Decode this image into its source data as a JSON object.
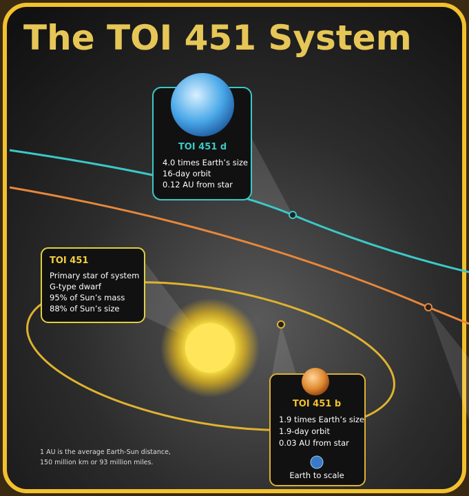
{
  "title": "The TOI 451 System",
  "planet_d": {
    "name": "TOI 451 d",
    "lines": [
      "4.0 times Earth’s size",
      "16-day orbit",
      "0.12 AU from star"
    ]
  },
  "star": {
    "name": "TOI 451",
    "lines": [
      "Primary star of system",
      "G-type dwarf",
      "95% of Sun’s mass",
      "88% of Sun’s size"
    ]
  },
  "planet_b": {
    "name": "TOI 451 b",
    "lines": [
      "1.9 times Earth’s size",
      "1.9-day orbit",
      "0.03 AU from star"
    ],
    "earth_note": "Earth to scale"
  },
  "footnote": [
    "1 AU is the average Earth-Sun distance,",
    "150 million km or 93 million miles."
  ]
}
